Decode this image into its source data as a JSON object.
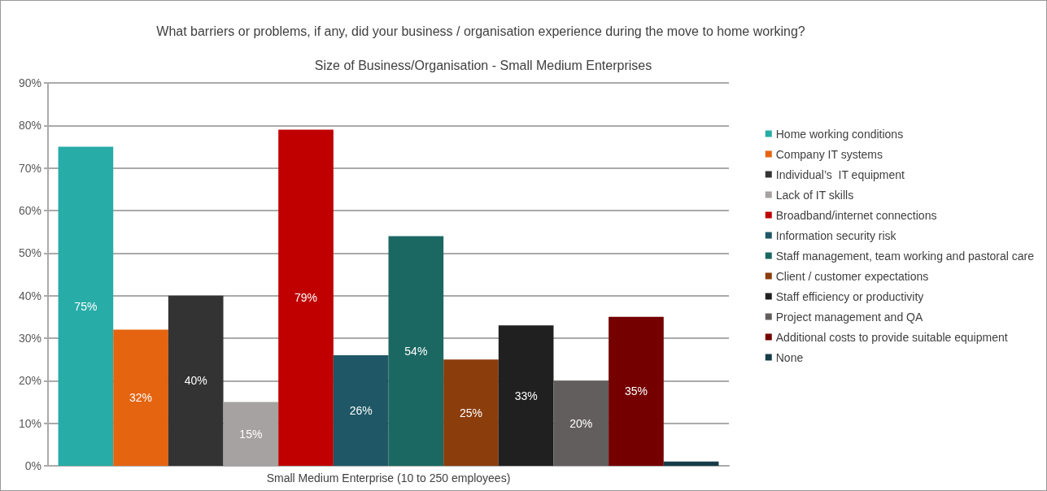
{
  "chart_data": {
    "type": "bar",
    "title": "What barriers or problems, if any, did your business / organisation experience during the move to home working?",
    "subtitle": "Size of Business/Organisation - Small Medium Enterprises",
    "categories": [
      "Small Medium Enterprise (10 to 250 employees)"
    ],
    "series": [
      {
        "name": "Home working conditions",
        "color": "#27aca7",
        "values": [
          75
        ],
        "value_labels": [
          "75%"
        ]
      },
      {
        "name": "Company IT systems",
        "color": "#e56410",
        "values": [
          32
        ],
        "value_labels": [
          "32%"
        ]
      },
      {
        "name": "Individual’s  IT equipment",
        "color": "#333333",
        "values": [
          40
        ],
        "value_labels": [
          "40%"
        ]
      },
      {
        "name": "Lack of IT skills",
        "color": "#a5a2a1",
        "values": [
          15
        ],
        "value_labels": [
          "15%"
        ]
      },
      {
        "name": "Broadband/internet connections",
        "color": "#c00000",
        "values": [
          79
        ],
        "value_labels": [
          "79%"
        ]
      },
      {
        "name": "Information security risk",
        "color": "#1f5766",
        "values": [
          26
        ],
        "value_labels": [
          "26%"
        ]
      },
      {
        "name": "Staff management, team working and pastoral care",
        "color": "#1b6862",
        "values": [
          54
        ],
        "value_labels": [
          "54%"
        ]
      },
      {
        "name": "Client / customer expectations",
        "color": "#8b3d0c",
        "values": [
          25
        ],
        "value_labels": [
          "25%"
        ]
      },
      {
        "name": "Staff efficiency or productivity",
        "color": "#202020",
        "values": [
          33
        ],
        "value_labels": [
          "33%"
        ]
      },
      {
        "name": "Project management and QA",
        "color": "#625e5d",
        "values": [
          20
        ],
        "value_labels": [
          "20%"
        ]
      },
      {
        "name": "Additional costs to provide suitable equipment",
        "color": "#750000",
        "values": [
          35
        ],
        "value_labels": [
          "35%"
        ]
      },
      {
        "name": "None",
        "color": "#163c48",
        "values": [
          1
        ],
        "value_labels": [
          null
        ]
      }
    ],
    "ylim": [
      0,
      90
    ],
    "yticks": [
      {
        "value": 0,
        "label": "0%"
      },
      {
        "value": 10,
        "label": "10%"
      },
      {
        "value": 20,
        "label": "20%"
      },
      {
        "value": 30,
        "label": "30%"
      },
      {
        "value": 40,
        "label": "40%"
      },
      {
        "value": 50,
        "label": "50%"
      },
      {
        "value": 60,
        "label": "60%"
      },
      {
        "value": 70,
        "label": "70%"
      },
      {
        "value": 80,
        "label": "80%"
      },
      {
        "value": 90,
        "label": "90%"
      }
    ],
    "grid": "y",
    "legend": "right"
  }
}
